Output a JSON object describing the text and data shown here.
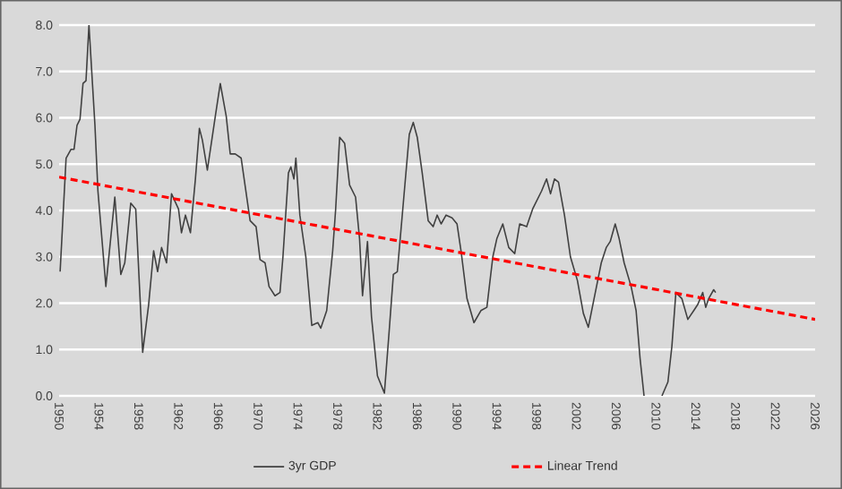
{
  "chart_data": {
    "type": "line",
    "xlim": [
      1950,
      2026
    ],
    "xticks": [
      1950,
      1954,
      1958,
      1962,
      1966,
      1970,
      1974,
      1978,
      1982,
      1986,
      1990,
      1994,
      1998,
      2002,
      2006,
      2010,
      2014,
      2018,
      2022,
      2026
    ],
    "ylim": [
      0,
      8
    ],
    "yticks": [
      {
        "value": 0,
        "label": "0.0"
      },
      {
        "value": 1,
        "label": "1.0"
      },
      {
        "value": 2,
        "label": "2.0"
      },
      {
        "value": 3,
        "label": "3.0"
      },
      {
        "value": 4,
        "label": "4.0"
      },
      {
        "value": 5,
        "label": "5.0"
      },
      {
        "value": 6,
        "label": "6.0"
      },
      {
        "value": 7,
        "label": "7.0"
      },
      {
        "value": 8,
        "label": "8.0"
      }
    ],
    "grid": "y",
    "legend": "bottom",
    "series": [
      {
        "name": "3yr GDP",
        "color": "#404040",
        "line_style": "solid",
        "x": [
          1950.1,
          1950.7,
          1951.2,
          1951.5,
          1951.8,
          1952.1,
          1952.4,
          1952.7,
          1953.0,
          1953.6,
          1953.9,
          1954.7,
          1955.6,
          1956.2,
          1956.6,
          1957.2,
          1957.7,
          1958.4,
          1959.0,
          1959.5,
          1959.9,
          1960.3,
          1960.8,
          1961.3,
          1962.0,
          1962.3,
          1962.7,
          1963.2,
          1963.7,
          1964.1,
          1964.4,
          1964.9,
          1965.3,
          1965.7,
          1966.2,
          1966.8,
          1967.2,
          1967.7,
          1968.3,
          1969.2,
          1969.8,
          1970.2,
          1970.7,
          1971.1,
          1971.7,
          1972.2,
          1972.5,
          1973.05,
          1973.3,
          1973.6,
          1973.8,
          1974.2,
          1974.8,
          1975.4,
          1976.0,
          1976.3,
          1976.9,
          1977.5,
          1977.8,
          1978.2,
          1978.7,
          1979.2,
          1979.8,
          1980.2,
          1980.5,
          1981.0,
          1981.4,
          1982.0,
          1982.7,
          1983.2,
          1983.6,
          1984.0,
          1984.6,
          1985.2,
          1985.6,
          1986.0,
          1986.5,
          1987.1,
          1987.6,
          1988.0,
          1988.4,
          1988.9,
          1989.5,
          1990.0,
          1990.4,
          1991.0,
          1991.7,
          1992.4,
          1993.0,
          1993.6,
          1994.0,
          1994.6,
          1995.2,
          1995.8,
          1996.3,
          1997.0,
          1997.6,
          1998.5,
          1999.0,
          1999.4,
          1999.8,
          2000.2,
          2000.8,
          2001.4,
          2002.1,
          2002.7,
          2003.2,
          2003.9,
          2004.5,
          2005.0,
          2005.4,
          2005.9,
          2006.3,
          2006.8,
          2007.5,
          2008.0,
          2008.4,
          2008.8,
          2009.7,
          2010.6,
          2011.2,
          2011.6,
          2012.0,
          2012.6,
          2013.2,
          2013.8,
          2014.2,
          2014.7,
          2015.0,
          2015.3,
          2015.8,
          2016.0
        ],
        "values": [
          2.68,
          5.13,
          5.32,
          5.32,
          5.84,
          5.97,
          6.74,
          6.8,
          8.0,
          5.84,
          4.42,
          2.36,
          4.29,
          2.62,
          2.87,
          4.16,
          4.03,
          0.94,
          1.97,
          3.13,
          2.68,
          3.2,
          2.87,
          4.36,
          4.03,
          3.52,
          3.9,
          3.52,
          4.68,
          5.77,
          5.52,
          4.87,
          5.45,
          6.03,
          6.74,
          6.03,
          5.22,
          5.22,
          5.13,
          3.78,
          3.65,
          2.94,
          2.87,
          2.36,
          2.16,
          2.23,
          3.0,
          4.81,
          4.94,
          4.68,
          5.13,
          3.9,
          3.0,
          1.52,
          1.58,
          1.46,
          1.84,
          3.13,
          4.03,
          5.58,
          5.45,
          4.55,
          4.29,
          3.39,
          2.16,
          3.33,
          1.71,
          0.43,
          0.06,
          1.46,
          2.62,
          2.68,
          4.16,
          5.64,
          5.9,
          5.58,
          4.81,
          3.78,
          3.65,
          3.9,
          3.71,
          3.9,
          3.84,
          3.71,
          3.13,
          2.1,
          1.58,
          1.84,
          1.91,
          3.0,
          3.39,
          3.71,
          3.2,
          3.07,
          3.71,
          3.65,
          4.03,
          4.42,
          4.68,
          4.36,
          4.68,
          4.61,
          3.9,
          3.0,
          2.49,
          1.78,
          1.48,
          2.23,
          2.87,
          3.2,
          3.33,
          3.71,
          3.39,
          2.87,
          2.36,
          1.84,
          0.81,
          0.0,
          null,
          0.0,
          0.3,
          1.07,
          2.23,
          2.1,
          1.65,
          1.84,
          1.97,
          2.23,
          1.91,
          2.1,
          2.29,
          2.23
        ]
      },
      {
        "name": "Linear Trend",
        "color": "#ff0000",
        "line_style": "dashed",
        "x": [
          1950,
          2026
        ],
        "values": [
          4.72,
          1.65
        ]
      }
    ]
  }
}
